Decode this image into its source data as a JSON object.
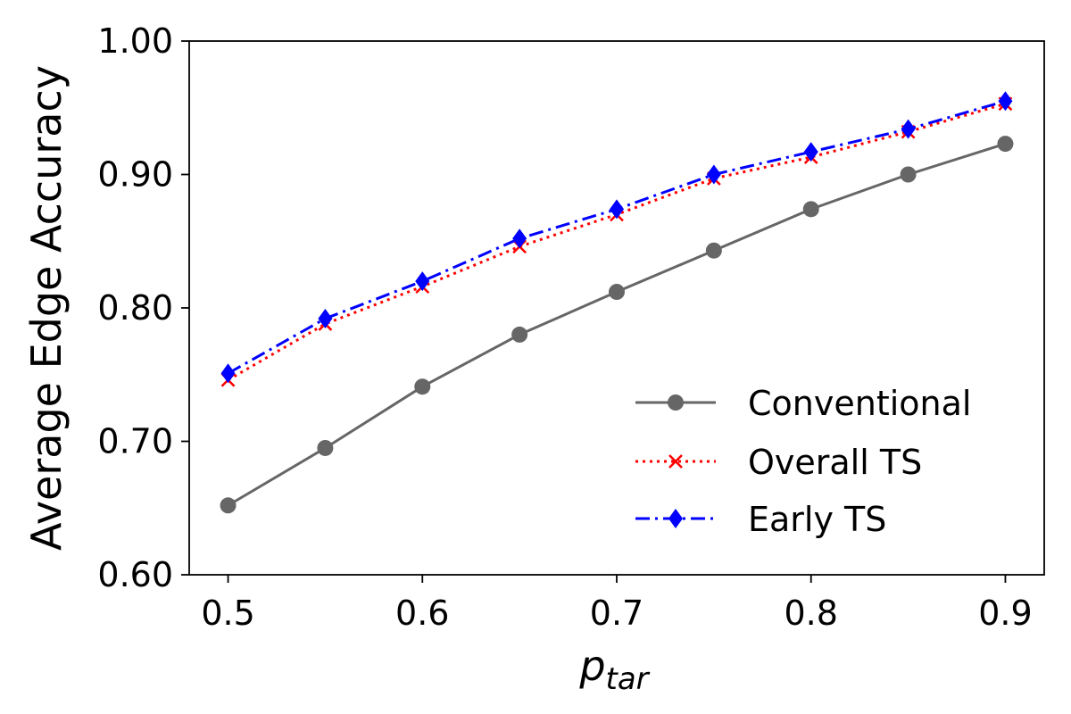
{
  "chart_data": {
    "type": "line",
    "x": [
      0.5,
      0.55,
      0.6,
      0.65,
      0.7,
      0.75,
      0.8,
      0.85,
      0.9
    ],
    "xlabel_main": "p",
    "xlabel_sub": "tar",
    "ylabel": "Average Edge Accuracy",
    "xlim": [
      0.48,
      0.92
    ],
    "ylim": [
      0.6,
      1.0
    ],
    "xticks": [
      "0.5",
      "0.6",
      "0.7",
      "0.8",
      "0.9"
    ],
    "xtick_values": [
      0.5,
      0.6,
      0.7,
      0.8,
      0.9
    ],
    "yticks": [
      "0.60",
      "0.70",
      "0.80",
      "0.90",
      "1.00"
    ],
    "ytick_values": [
      0.6,
      0.7,
      0.8,
      0.9,
      1.0
    ],
    "grid": false,
    "legend_position": "lower-right",
    "series": [
      {
        "name": "Conventional",
        "color": "#666666",
        "line_style": "solid",
        "marker": "circle",
        "values": [
          0.652,
          0.695,
          0.741,
          0.78,
          0.812,
          0.843,
          0.874,
          0.9,
          0.923
        ]
      },
      {
        "name": "Overall TS",
        "color": "#ff0000",
        "line_style": "dotted",
        "marker": "x",
        "values": [
          0.746,
          0.788,
          0.816,
          0.846,
          0.87,
          0.897,
          0.913,
          0.932,
          0.953
        ]
      },
      {
        "name": "Early TS",
        "color": "#0000ff",
        "line_style": "dashdot",
        "marker": "diamond",
        "values": [
          0.751,
          0.792,
          0.82,
          0.852,
          0.874,
          0.9,
          0.917,
          0.934,
          0.955
        ]
      }
    ]
  }
}
